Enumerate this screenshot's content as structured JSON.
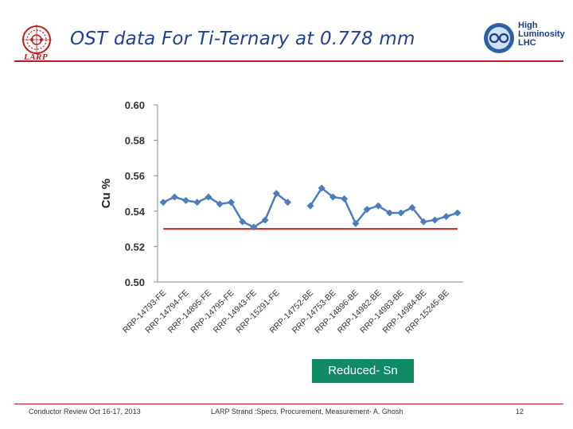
{
  "slide": {
    "title": "OST data For Ti-Ternary at 0.778 mm",
    "larp_logo_text": "LARP",
    "hl_logo_lines": [
      "High",
      "Luminosity",
      "LHC"
    ],
    "annotation": "Reduced- Sn"
  },
  "footer": {
    "left": "Conductor Review Oct 16-17, 2013",
    "center": "LARP Strand :Specs. Procurement, Measurement- A. Ghosh",
    "page_number": "12"
  },
  "colors": {
    "title": "#1f3f9a",
    "rule": "#b91d1d",
    "series": "#4a7ebb",
    "reference": "#c0392b",
    "annotation_bg": "#0f8a64"
  },
  "chart_data": {
    "type": "line",
    "ylabel": "Cu %",
    "xlabel": "",
    "ylim": [
      0.5,
      0.6
    ],
    "yticks": [
      "0.50",
      "0.52",
      "0.54",
      "0.56",
      "0.58",
      "0.60"
    ],
    "grid": "horizontal",
    "categories": [
      "RRP-14793-FE",
      "",
      "RRP-14794-FE",
      "",
      "RRP-14895-FE",
      "",
      "RRP-14795-FE",
      "",
      "RRP-14943-FE",
      "",
      "RRP-15291-FE",
      "",
      "",
      "RRP-14752-BE",
      "",
      "RRP-14753-BE",
      "",
      "RRP-14896-BE",
      "",
      "RRP-14982-BE",
      "",
      "RRP-14983-BE",
      "",
      "RRP-14984-BE",
      "",
      "RRP-15245-BE",
      ""
    ],
    "series": [
      {
        "name": "",
        "values": [
          0.545,
          0.548,
          0.546,
          0.545,
          0.548,
          0.544,
          0.545,
          0.534,
          0.531,
          0.535,
          0.55,
          0.545,
          null,
          0.543,
          0.553,
          0.548,
          0.547,
          0.533,
          0.541,
          0.543,
          0.539,
          0.539,
          0.542,
          0.534,
          0.535,
          0.537,
          0.539
        ]
      }
    ],
    "reference_line": 0.53
  }
}
